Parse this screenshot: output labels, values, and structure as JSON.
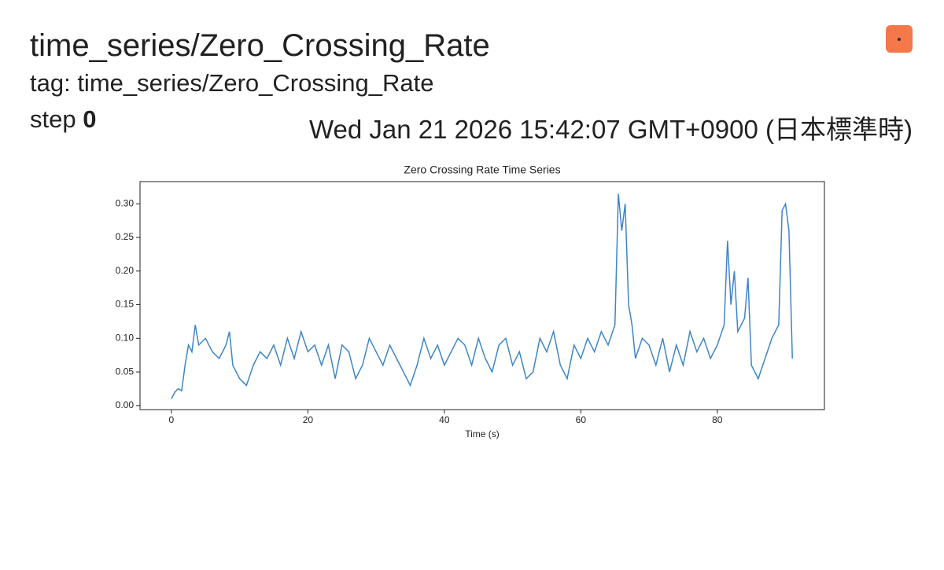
{
  "header": {
    "title": "time_series/Zero_Crossing_Rate",
    "tag": "tag: time_series/Zero_Crossing_Rate",
    "step_label": "step",
    "step_value": "0",
    "timestamp": "Wed Jan 21 2026 15:42:07 GMT+0900 (日本標準時)"
  },
  "chart_data": {
    "type": "line",
    "title": "Zero Crossing Rate Time Series",
    "x_label": "Time (s)",
    "xlim": [
      -4.6,
      95.7
    ],
    "ylim": [
      -0.006,
      0.333
    ],
    "xticks": [
      0,
      20,
      40,
      60,
      80
    ],
    "yticks": [
      {
        "value": 0,
        "label": "0.00"
      },
      {
        "value": 0.05,
        "label": "0.05"
      },
      {
        "value": 0.1,
        "label": "0.10"
      },
      {
        "value": 0.15,
        "label": "0.15"
      },
      {
        "value": 0.2,
        "label": "0.20"
      },
      {
        "value": 0.25,
        "label": "0.25"
      },
      {
        "value": 0.3,
        "label": "0.30"
      }
    ],
    "grid": false,
    "series": [
      {
        "color": "#3d85c6",
        "x": [
          0,
          0.5,
          1,
          1.5,
          2,
          2.5,
          3,
          3.5,
          4,
          5,
          6,
          7,
          8,
          8.5,
          9,
          10,
          11,
          12,
          13,
          14,
          15,
          16,
          17,
          18,
          19,
          20,
          21,
          22,
          23,
          24,
          25,
          26,
          27,
          28,
          29,
          30,
          31,
          32,
          33,
          34,
          35,
          36,
          37,
          38,
          39,
          40,
          41,
          42,
          43,
          44,
          45,
          46,
          47,
          48,
          49,
          50,
          51,
          52,
          53,
          54,
          55,
          56,
          57,
          58,
          59,
          60,
          61,
          62,
          63,
          64,
          65,
          65.5,
          66,
          66.5,
          67,
          67.5,
          68,
          69,
          70,
          71,
          72,
          73,
          74,
          75,
          76,
          77,
          78,
          79,
          80,
          81,
          81.5,
          82,
          82.5,
          83,
          84,
          84.5,
          85,
          86,
          87,
          88,
          89,
          89.5,
          90,
          90.5,
          91
        ],
        "values": [
          0.01,
          0.02,
          0.025,
          0.022,
          0.06,
          0.09,
          0.08,
          0.12,
          0.09,
          0.1,
          0.08,
          0.07,
          0.09,
          0.11,
          0.06,
          0.04,
          0.03,
          0.06,
          0.08,
          0.07,
          0.09,
          0.06,
          0.1,
          0.07,
          0.11,
          0.08,
          0.09,
          0.06,
          0.09,
          0.04,
          0.09,
          0.08,
          0.04,
          0.06,
          0.1,
          0.08,
          0.06,
          0.09,
          0.07,
          0.05,
          0.03,
          0.06,
          0.1,
          0.07,
          0.09,
          0.06,
          0.08,
          0.1,
          0.09,
          0.06,
          0.1,
          0.07,
          0.05,
          0.09,
          0.1,
          0.06,
          0.08,
          0.04,
          0.05,
          0.1,
          0.08,
          0.11,
          0.06,
          0.04,
          0.09,
          0.07,
          0.1,
          0.08,
          0.11,
          0.09,
          0.12,
          0.315,
          0.26,
          0.3,
          0.15,
          0.12,
          0.07,
          0.1,
          0.09,
          0.06,
          0.1,
          0.05,
          0.09,
          0.06,
          0.11,
          0.08,
          0.1,
          0.07,
          0.09,
          0.12,
          0.245,
          0.15,
          0.2,
          0.11,
          0.13,
          0.19,
          0.06,
          0.04,
          0.07,
          0.1,
          0.12,
          0.29,
          0.3,
          0.26,
          0.07
        ]
      }
    ]
  }
}
